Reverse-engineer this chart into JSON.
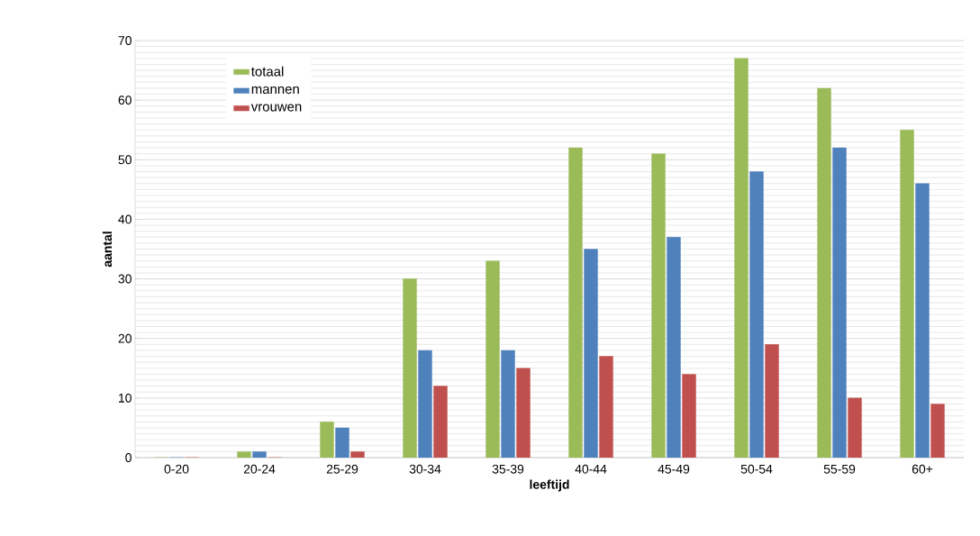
{
  "chart_data": {
    "type": "bar",
    "xlabel": "leeftijd",
    "ylabel": "aantal",
    "categories": [
      "0-20",
      "20-24",
      "25-29",
      "30-34",
      "35-39",
      "40-44",
      "45-49",
      "50-54",
      "55-59",
      "60+"
    ],
    "series": [
      {
        "name": "totaal",
        "color": "#9bbb59",
        "values": [
          0,
          1,
          6,
          30,
          33,
          52,
          51,
          67,
          62,
          55
        ]
      },
      {
        "name": "mannen",
        "color": "#4f81bd",
        "values": [
          0,
          1,
          5,
          18,
          18,
          35,
          37,
          48,
          52,
          46
        ]
      },
      {
        "name": "vrouwen",
        "color": "#c0504d",
        "values": [
          0,
          0,
          1,
          12,
          15,
          17,
          14,
          19,
          10,
          9
        ]
      }
    ],
    "ylim": [
      0,
      70
    ],
    "yticks": [
      0,
      10,
      20,
      30,
      40,
      50,
      60,
      70
    ],
    "grid": "y",
    "legend": "top left"
  }
}
